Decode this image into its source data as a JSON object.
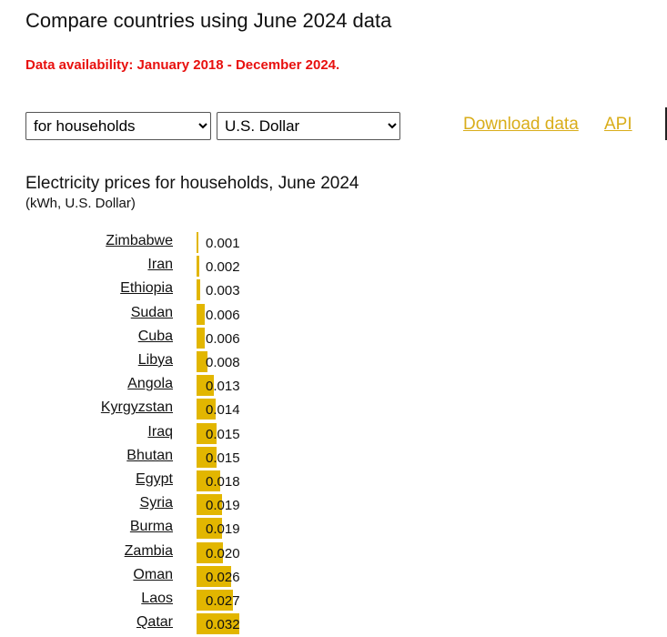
{
  "page_title": "Compare countries using June 2024 data",
  "availability": "Data availability: January 2018 - December 2024.",
  "controls": {
    "consumer": "for households",
    "currency": "U.S. Dollar"
  },
  "links": {
    "download": "Download data",
    "api": "API"
  },
  "chart_data": {
    "type": "bar",
    "orientation": "horizontal",
    "title": "Electricity prices for households, June 2024",
    "subtitle": "(kWh, U.S. Dollar)",
    "color": "#e2b600",
    "categories": [
      "Zimbabwe",
      "Iran",
      "Ethiopia",
      "Sudan",
      "Cuba",
      "Libya",
      "Angola",
      "Kyrgyzstan",
      "Iraq",
      "Bhutan",
      "Egypt",
      "Syria",
      "Burma",
      "Zambia",
      "Oman",
      "Laos",
      "Qatar"
    ],
    "values": [
      0.001,
      0.002,
      0.003,
      0.006,
      0.006,
      0.008,
      0.013,
      0.014,
      0.015,
      0.015,
      0.018,
      0.019,
      0.019,
      0.02,
      0.026,
      0.027,
      0.032
    ],
    "value_labels": [
      "0.001",
      "0.002",
      "0.003",
      "0.006",
      "0.006",
      "0.008",
      "0.013",
      "0.014",
      "0.015",
      "0.015",
      "0.018",
      "0.019",
      "0.019",
      "0.020",
      "0.026",
      "0.027",
      "0.032"
    ]
  }
}
